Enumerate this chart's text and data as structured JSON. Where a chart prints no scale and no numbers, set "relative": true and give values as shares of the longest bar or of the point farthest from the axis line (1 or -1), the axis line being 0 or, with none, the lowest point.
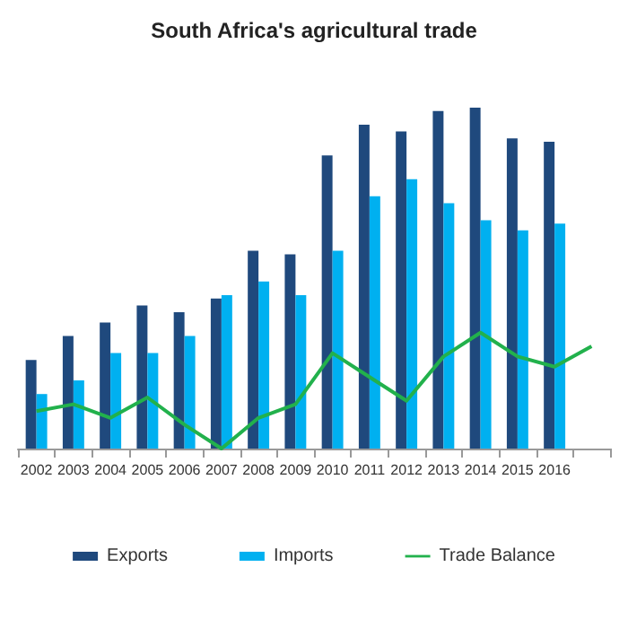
{
  "chart_data": {
    "type": "bar",
    "title": "South Africa's agricultural trade",
    "relative": true,
    "legend": "bottom",
    "marker": "none",
    "line_style": "solid",
    "categories": [
      "2002",
      "2003",
      "2004",
      "2005",
      "2006",
      "2007",
      "2008",
      "2009",
      "2010",
      "2011",
      "2012",
      "2013",
      "2014",
      "2015",
      "2016",
      null
    ],
    "series": [
      {
        "name": "Exports",
        "color": "#1f497d",
        "values": [
          0.26,
          0.33,
          0.37,
          0.42,
          0.4,
          0.44,
          0.58,
          0.57,
          0.86,
          0.95,
          0.93,
          0.99,
          1,
          0.91,
          0.9,
          null
        ]
      },
      {
        "name": "Imports",
        "color": "#00b0f0",
        "values": [
          0.16,
          0.2,
          0.28,
          0.28,
          0.33,
          0.45,
          0.49,
          0.45,
          0.58,
          0.74,
          0.79,
          0.72,
          0.67,
          0.64,
          0.66,
          null
        ]
      },
      {
        "name": "Trade Balance",
        "type": "line",
        "color": "#22b14c",
        "values": [
          0.11,
          0.13,
          0.09,
          0.15,
          0.07,
          0,
          0.09,
          0.13,
          0.28,
          0.21,
          0.14,
          0.27,
          0.34,
          0.27,
          0.24,
          0.3
        ]
      }
    ]
  }
}
